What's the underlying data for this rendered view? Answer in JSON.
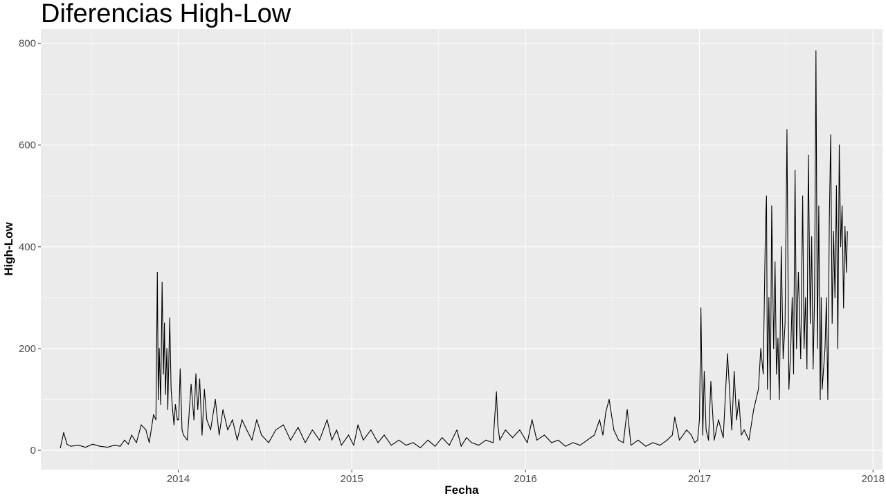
{
  "chart_data": {
    "type": "line",
    "title": "Diferencias High-Low",
    "xlabel": "Fecha",
    "ylabel": "High-Low",
    "x_ticks": [
      "2014",
      "2015",
      "2016",
      "2017",
      "2018"
    ],
    "y_ticks": [
      "0",
      "200",
      "400",
      "600",
      "800"
    ],
    "xlim": [
      "2013-03-18",
      "2018-01-21"
    ],
    "ylim": [
      -38,
      828
    ],
    "grid": true,
    "series": [
      {
        "x": [
          "2013-04-28",
          "2013-05-05",
          "2013-05-12",
          "2013-05-20",
          "2013-06-05",
          "2013-06-20",
          "2013-07-05",
          "2013-07-20",
          "2013-08-05",
          "2013-08-20",
          "2013-09-01",
          "2013-09-10",
          "2013-09-18",
          "2013-09-25",
          "2013-10-05",
          "2013-10-15",
          "2013-10-25",
          "2013-11-01",
          "2013-11-10",
          "2013-11-15",
          "2013-11-18",
          "2013-11-20",
          "2013-11-22",
          "2013-11-25",
          "2013-11-28",
          "2013-12-01",
          "2013-12-03",
          "2013-12-05",
          "2013-12-08",
          "2013-12-10",
          "2013-12-14",
          "2013-12-17",
          "2013-12-20",
          "2013-12-23",
          "2013-12-26",
          "2013-12-30",
          "2014-01-02",
          "2014-01-05",
          "2014-01-09",
          "2014-01-12",
          "2014-01-20",
          "2014-01-28",
          "2014-02-03",
          "2014-02-07",
          "2014-02-11",
          "2014-02-15",
          "2014-02-20",
          "2014-02-25",
          "2014-03-02",
          "2014-03-10",
          "2014-03-20",
          "2014-03-28",
          "2014-04-05",
          "2014-04-15",
          "2014-04-25",
          "2014-05-05",
          "2014-05-15",
          "2014-05-25",
          "2014-06-05",
          "2014-06-15",
          "2014-06-25",
          "2014-07-10",
          "2014-07-25",
          "2014-08-10",
          "2014-08-25",
          "2014-09-10",
          "2014-09-25",
          "2014-10-10",
          "2014-10-25",
          "2014-11-10",
          "2014-11-20",
          "2014-11-30",
          "2014-12-10",
          "2014-12-25",
          "2015-01-05",
          "2015-01-14",
          "2015-01-25",
          "2015-02-10",
          "2015-02-25",
          "2015-03-10",
          "2015-03-25",
          "2015-04-10",
          "2015-04-25",
          "2015-05-10",
          "2015-05-25",
          "2015-06-10",
          "2015-06-25",
          "2015-07-10",
          "2015-07-25",
          "2015-08-10",
          "2015-08-19",
          "2015-08-30",
          "2015-09-10",
          "2015-09-25",
          "2015-10-10",
          "2015-10-25",
          "2015-11-01",
          "2015-11-04",
          "2015-11-08",
          "2015-11-20",
          "2015-12-05",
          "2015-12-20",
          "2016-01-05",
          "2016-01-15",
          "2016-01-25",
          "2016-02-10",
          "2016-02-25",
          "2016-03-10",
          "2016-03-25",
          "2016-04-10",
          "2016-04-25",
          "2016-05-10",
          "2016-05-25",
          "2016-06-05",
          "2016-06-12",
          "2016-06-18",
          "2016-06-25",
          "2016-07-05",
          "2016-07-15",
          "2016-07-25",
          "2016-08-02",
          "2016-08-10",
          "2016-08-25",
          "2016-09-10",
          "2016-09-25",
          "2016-10-10",
          "2016-10-25",
          "2016-11-05",
          "2016-11-10",
          "2016-11-20",
          "2016-12-05",
          "2016-12-15",
          "2016-12-22",
          "2016-12-28",
          "2017-01-01",
          "2017-01-04",
          "2017-01-08",
          "2017-01-11",
          "2017-01-15",
          "2017-01-20",
          "2017-01-25",
          "2017-02-01",
          "2017-02-10",
          "2017-02-20",
          "2017-03-01",
          "2017-03-10",
          "2017-03-15",
          "2017-03-20",
          "2017-03-25",
          "2017-03-30",
          "2017-04-05",
          "2017-04-15",
          "2017-04-25",
          "2017-05-05",
          "2017-05-10",
          "2017-05-15",
          "2017-05-20",
          "2017-05-22",
          "2017-05-24",
          "2017-05-27",
          "2017-05-30",
          "2017-06-02",
          "2017-06-06",
          "2017-06-09",
          "2017-06-12",
          "2017-06-15",
          "2017-06-18",
          "2017-06-22",
          "2017-06-26",
          "2017-06-30",
          "2017-07-04",
          "2017-07-08",
          "2017-07-12",
          "2017-07-15",
          "2017-07-18",
          "2017-07-21",
          "2017-07-24",
          "2017-07-28",
          "2017-08-02",
          "2017-08-06",
          "2017-08-09",
          "2017-08-12",
          "2017-08-15",
          "2017-08-18",
          "2017-08-22",
          "2017-08-25",
          "2017-08-28",
          "2017-08-31",
          "2017-09-03",
          "2017-09-06",
          "2017-09-09",
          "2017-09-12",
          "2017-09-14",
          "2017-09-16",
          "2017-09-19",
          "2017-09-22",
          "2017-09-25",
          "2017-09-28",
          "2017-10-01",
          "2017-10-04",
          "2017-10-07",
          "2017-10-10",
          "2017-10-13",
          "2017-10-16",
          "2017-10-19",
          "2017-10-22",
          "2017-10-25",
          "2017-10-28",
          "2017-10-31",
          "2017-11-03",
          "2017-11-06",
          "2017-11-08"
        ],
        "values": [
          5,
          35,
          12,
          8,
          10,
          6,
          12,
          8,
          6,
          10,
          8,
          20,
          12,
          30,
          15,
          50,
          40,
          15,
          70,
          60,
          350,
          100,
          200,
          90,
          330,
          150,
          250,
          110,
          200,
          80,
          260,
          120,
          80,
          50,
          90,
          60,
          60,
          160,
          40,
          30,
          20,
          130,
          60,
          150,
          80,
          140,
          30,
          120,
          60,
          40,
          100,
          30,
          80,
          40,
          60,
          20,
          60,
          40,
          20,
          60,
          30,
          15,
          40,
          50,
          20,
          45,
          15,
          40,
          20,
          60,
          20,
          40,
          10,
          30,
          10,
          50,
          20,
          40,
          15,
          30,
          10,
          20,
          10,
          15,
          5,
          20,
          8,
          25,
          10,
          40,
          8,
          25,
          15,
          10,
          20,
          15,
          115,
          50,
          20,
          40,
          25,
          40,
          15,
          60,
          20,
          30,
          15,
          20,
          8,
          15,
          10,
          20,
          30,
          60,
          30,
          75,
          100,
          40,
          20,
          15,
          80,
          10,
          20,
          8,
          15,
          10,
          20,
          30,
          65,
          20,
          40,
          30,
          15,
          20,
          60,
          280,
          30,
          155,
          40,
          20,
          135,
          20,
          60,
          25,
          190,
          40,
          155,
          60,
          100,
          30,
          40,
          20,
          80,
          120,
          200,
          150,
          450,
          500,
          120,
          300,
          100,
          480,
          200,
          370,
          150,
          220,
          100,
          400,
          180,
          250,
          630,
          120,
          200,
          300,
          150,
          550,
          200,
          350,
          180,
          500,
          200,
          300,
          160,
          580,
          250,
          420,
          160,
          300,
          785,
          200,
          480,
          100,
          300,
          120,
          160,
          200,
          300,
          100,
          450,
          620,
          250,
          430,
          300,
          520,
          200,
          600,
          400,
          480,
          280,
          440,
          350,
          430
        ]
      }
    ]
  }
}
